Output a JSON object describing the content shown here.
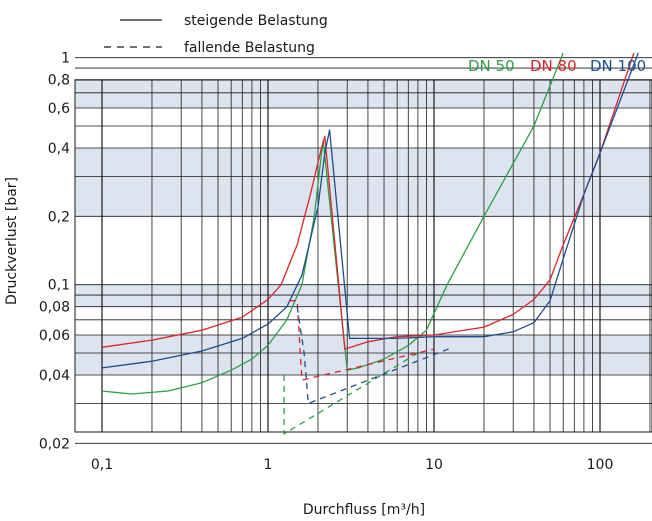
{
  "chart_data": {
    "type": "line",
    "xlabel": "Durchfluss [m³/h]",
    "ylabel": "Druckverlust [bar]",
    "xscale": "log",
    "yscale": "log",
    "xlim": [
      0.1,
      170
    ],
    "ylim": [
      0.01,
      1.05
    ],
    "grid": true,
    "x_ticks": [
      0.1,
      1,
      10,
      100
    ],
    "x_tick_labels": [
      "0,1",
      "1",
      "10",
      "100"
    ],
    "y_ticks": [
      0.02,
      0.04,
      0.06,
      0.08,
      0.1,
      0.2,
      0.4,
      0.6,
      0.8,
      1
    ],
    "y_tick_labels": [
      "0,02",
      "0,04",
      "0,06",
      "0,08",
      "0,1",
      "0,2",
      "0,4",
      "0,6",
      "0,8",
      "1"
    ],
    "legend": [
      {
        "label": "steigende Belastung",
        "style": "solid"
      },
      {
        "label": "fallende Belastung",
        "style": "dashed"
      }
    ],
    "series_labels": [
      {
        "name": "DN 50",
        "color": "#2e9e48"
      },
      {
        "name": "DN 80",
        "color": "#d9252b"
      },
      {
        "name": "DN 100",
        "color": "#1f4e8c"
      }
    ],
    "series": [
      {
        "name": "DN 50",
        "style": "solid",
        "color": "#2e9e48",
        "x": [
          0.1,
          0.15,
          0.25,
          0.4,
          0.6,
          0.8,
          1.0,
          1.3,
          1.6,
          1.9,
          2.1,
          2.15,
          3.0,
          3.5,
          5,
          7,
          9,
          12,
          20,
          40,
          60
        ],
        "y": [
          0.034,
          0.033,
          0.034,
          0.037,
          0.042,
          0.047,
          0.054,
          0.07,
          0.1,
          0.2,
          0.38,
          0.43,
          0.042,
          0.043,
          0.047,
          0.054,
          0.063,
          0.1,
          0.2,
          0.5,
          1.05
        ]
      },
      {
        "name": "DN 80",
        "style": "solid",
        "color": "#d9252b",
        "x": [
          0.1,
          0.2,
          0.4,
          0.7,
          1.0,
          1.2,
          1.5,
          1.8,
          2.1,
          2.2,
          2.9,
          4,
          6,
          10,
          20,
          30,
          40,
          50,
          60,
          80,
          100,
          160
        ],
        "y": [
          0.053,
          0.057,
          0.063,
          0.072,
          0.086,
          0.1,
          0.15,
          0.25,
          0.4,
          0.45,
          0.052,
          0.056,
          0.059,
          0.06,
          0.065,
          0.074,
          0.086,
          0.105,
          0.15,
          0.25,
          0.38,
          1.05
        ]
      },
      {
        "name": "DN 100",
        "style": "solid",
        "color": "#1f4e8c",
        "x": [
          0.1,
          0.2,
          0.4,
          0.7,
          1.0,
          1.3,
          1.6,
          2.0,
          2.2,
          2.35,
          3.1,
          4,
          6,
          10,
          20,
          30,
          40,
          50,
          60,
          80,
          100,
          170
        ],
        "y": [
          0.043,
          0.046,
          0.051,
          0.058,
          0.067,
          0.08,
          0.11,
          0.22,
          0.38,
          0.48,
          0.058,
          0.058,
          0.058,
          0.059,
          0.059,
          0.062,
          0.068,
          0.085,
          0.13,
          0.25,
          0.38,
          1.05
        ]
      },
      {
        "name": "DN 50",
        "style": "dashed",
        "color": "#2e9e48",
        "x": [
          1.25,
          1.25,
          8
        ],
        "y": [
          0.04,
          0.022,
          0.05
        ]
      },
      {
        "name": "DN 80",
        "style": "dashed",
        "color": "#d9252b",
        "x": [
          1.35,
          1.5,
          1.6,
          10
        ],
        "y": [
          0.085,
          0.085,
          0.038,
          0.052
        ]
      },
      {
        "name": "DN 100",
        "style": "dashed",
        "color": "#1f4e8c",
        "x": [
          1.5,
          1.65,
          1.75,
          13
        ],
        "y": [
          0.08,
          0.05,
          0.03,
          0.053
        ]
      }
    ]
  }
}
